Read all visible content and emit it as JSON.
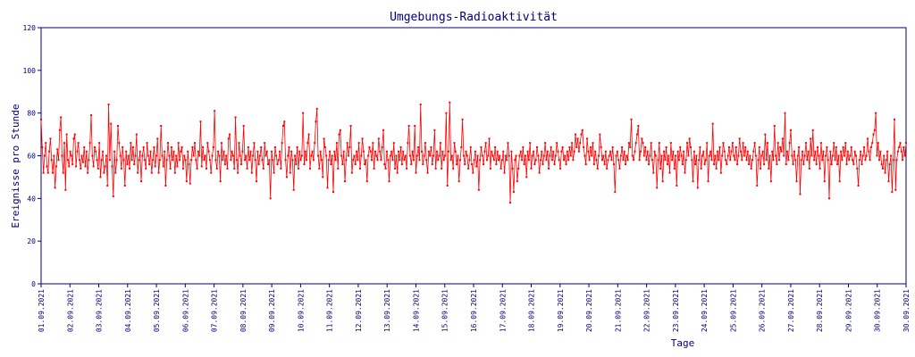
{
  "chart_data": {
    "type": "line",
    "title": "Umgebungs-Radioaktivität",
    "xlabel": "Tage",
    "ylabel": "Ereignisse pro Stunde",
    "ylim": [
      0,
      120
    ],
    "yticks": [
      0,
      20,
      40,
      60,
      80,
      100,
      120
    ],
    "xticks": [
      "01.09.2021",
      "02.09.2021",
      "03.09.2021",
      "04.09.2021",
      "05.09.2021",
      "06.09.2021",
      "07.09.2021",
      "08.09.2021",
      "09.09.2021",
      "10.09.2021",
      "11.09.2021",
      "12.09.2021",
      "13.09.2021",
      "14.09.2021",
      "15.09.2021",
      "16.09.2021",
      "17.09.2021",
      "18.09.2021",
      "19.09.2021",
      "20.09.2021",
      "21.09.2021",
      "22.09.2021",
      "23.09.2021",
      "24.09.2021",
      "25.09.2021",
      "26.09.2021",
      "27.09.2021",
      "28.09.2021",
      "29.09.2021",
      "30.09.2021",
      "30.09.2021"
    ],
    "xlim": [
      "2021-09-01 00:00",
      "2021-10-01 00:00"
    ],
    "interval": "hourly",
    "grid": false,
    "legend": "none",
    "color": "#ff0000",
    "series": [
      {
        "values": [
          77,
          64,
          52,
          60,
          66,
          55,
          52,
          62,
          68,
          58,
          52,
          60,
          45,
          55,
          63,
          58,
          72,
          78,
          60,
          52,
          66,
          44,
          70,
          58,
          55,
          62,
          60,
          56,
          68,
          70,
          55,
          62,
          66,
          58,
          54,
          60,
          57,
          64,
          55,
          62,
          52,
          58,
          66,
          79,
          60,
          55,
          64,
          62,
          58,
          54,
          66,
          50,
          58,
          62,
          52,
          55,
          60,
          46,
          84,
          58,
          75,
          55,
          41,
          62,
          52,
          58,
          74,
          66,
          60,
          54,
          64,
          58,
          46,
          62,
          56,
          60,
          54,
          66,
          58,
          64,
          56,
          60,
          70,
          52,
          58,
          62,
          48,
          60,
          64,
          58,
          54,
          66,
          60,
          56,
          62,
          52,
          58,
          64,
          55,
          60,
          68,
          52,
          58,
          74,
          60,
          55,
          62,
          46,
          58,
          66,
          60,
          54,
          64,
          58,
          62,
          52,
          60,
          55,
          66,
          58,
          62,
          64,
          54,
          60,
          58,
          48,
          62,
          56,
          47,
          58,
          64,
          60,
          66,
          58,
          54,
          62,
          60,
          76,
          55,
          64,
          58,
          60,
          54,
          66,
          62,
          58,
          52,
          60,
          64,
          81,
          58,
          54,
          62,
          60,
          48,
          66,
          58,
          62,
          56,
          60,
          54,
          68,
          70,
          58,
          62,
          60,
          54,
          78,
          58,
          52,
          66,
          60,
          56,
          62,
          74,
          58,
          60,
          54,
          64,
          58,
          62,
          52,
          60,
          66,
          58,
          48,
          62,
          56,
          60,
          64,
          58,
          54,
          66,
          60,
          62,
          56,
          58,
          40,
          62,
          58,
          52,
          64,
          60,
          56,
          58,
          62,
          54,
          66,
          74,
          76,
          58,
          50,
          60,
          64,
          52,
          62,
          58,
          44,
          60,
          56,
          64,
          54,
          62,
          58,
          60,
          80,
          56,
          62,
          58,
          66,
          70,
          54,
          60,
          62,
          58,
          66,
          76,
          82,
          60,
          54,
          62,
          58,
          50,
          68,
          64,
          60,
          45,
          58,
          62,
          56,
          60,
          43,
          62,
          58,
          66,
          54,
          70,
          72,
          60,
          56,
          62,
          48,
          58,
          66,
          60,
          64,
          74,
          52,
          58,
          60,
          56,
          62,
          58,
          66,
          54,
          60,
          68,
          62,
          56,
          58,
          48,
          60,
          64,
          62,
          58,
          66,
          54,
          62,
          60,
          58,
          68,
          62,
          58,
          64,
          72,
          56,
          54,
          62,
          58,
          48,
          60,
          62,
          58,
          66,
          54,
          60,
          52,
          62,
          58,
          64,
          56,
          62,
          58,
          60,
          54,
          66,
          74,
          60,
          56,
          62,
          58,
          74,
          52,
          60,
          64,
          58,
          84,
          62,
          56,
          60,
          66,
          58,
          52,
          62,
          60,
          64,
          56,
          60,
          72,
          54,
          62,
          58,
          60,
          66,
          54,
          62,
          58,
          60,
          80,
          46,
          62,
          85,
          58,
          60,
          54,
          66,
          62,
          56,
          60,
          48,
          58,
          64,
          77,
          60,
          56,
          62,
          60,
          54,
          58,
          64,
          56,
          52,
          58,
          62,
          55,
          60,
          44,
          58,
          64,
          60,
          56,
          62,
          66,
          58,
          60,
          68,
          54,
          62,
          60,
          58,
          64,
          56,
          62,
          58,
          60,
          54,
          58,
          62,
          52,
          60,
          58,
          66,
          60,
          38,
          62,
          54,
          43,
          58,
          60,
          48,
          54,
          60,
          62,
          58,
          64,
          56,
          60,
          50,
          62,
          58,
          66,
          54,
          60,
          62,
          56,
          58,
          64,
          60,
          52,
          58,
          62,
          56,
          60,
          66,
          58,
          62,
          54,
          60,
          64,
          58,
          62,
          56,
          60,
          66,
          62,
          58,
          54,
          62,
          64,
          58,
          60,
          56,
          62,
          58,
          64,
          60,
          66,
          58,
          62,
          70,
          64,
          68,
          62,
          66,
          70,
          72,
          64,
          60,
          56,
          68,
          62,
          58,
          64,
          60,
          66,
          56,
          62,
          58,
          54,
          60,
          70,
          64,
          58,
          60,
          56,
          62,
          54,
          58,
          60,
          62,
          58,
          64,
          56,
          43,
          60,
          62,
          58,
          54,
          60,
          64,
          58,
          62,
          56,
          60,
          58,
          66,
          64,
          77,
          60,
          58,
          62,
          66,
          70,
          74,
          58,
          62,
          68,
          66,
          60,
          64,
          58,
          62,
          56,
          60,
          66,
          58,
          52,
          62,
          60,
          45,
          58,
          66,
          54,
          60,
          48,
          62,
          58,
          64,
          56,
          60,
          52,
          66,
          58,
          62,
          54,
          60,
          46,
          62,
          58,
          64,
          60,
          56,
          62,
          52,
          58,
          66,
          60,
          68,
          64,
          58,
          48,
          62,
          56,
          60,
          45,
          58,
          64,
          54,
          60,
          62,
          56,
          58,
          66,
          48,
          60,
          62,
          58,
          75,
          56,
          60,
          54,
          62,
          58,
          64,
          52,
          60,
          66,
          62,
          58,
          56,
          60,
          64,
          58,
          62,
          66,
          60,
          58,
          64,
          56,
          60,
          68,
          62,
          58,
          66,
          60,
          64,
          58,
          62,
          56,
          60,
          54,
          58,
          62,
          66,
          60,
          46,
          58,
          64,
          54,
          60,
          62,
          56,
          70,
          58,
          66,
          54,
          60,
          48,
          62,
          58,
          74,
          60,
          56,
          66,
          58,
          64,
          62,
          68,
          60,
          80,
          56,
          62,
          58,
          66,
          72,
          60,
          56,
          62,
          58,
          48,
          60,
          64,
          42,
          58,
          62,
          56,
          60,
          66,
          58,
          62,
          54,
          68,
          60,
          72,
          58,
          62,
          56,
          64,
          60,
          54,
          66,
          58,
          62,
          48,
          60,
          64,
          58,
          40,
          62,
          56,
          60,
          66,
          58,
          64,
          56,
          60,
          48,
          62,
          58,
          64,
          60,
          66,
          56,
          62,
          58,
          60,
          64,
          58,
          56,
          62,
          60,
          54,
          46,
          58,
          62,
          56,
          60,
          64,
          58,
          60,
          68,
          62,
          58,
          64,
          66,
          70,
          72,
          80,
          60,
          66,
          58,
          62,
          56,
          54,
          60,
          52,
          58,
          62,
          48,
          56,
          60,
          43,
          58,
          77,
          44,
          58,
          62,
          64,
          66,
          62,
          58,
          64,
          60,
          66
        ]
      }
    ]
  }
}
